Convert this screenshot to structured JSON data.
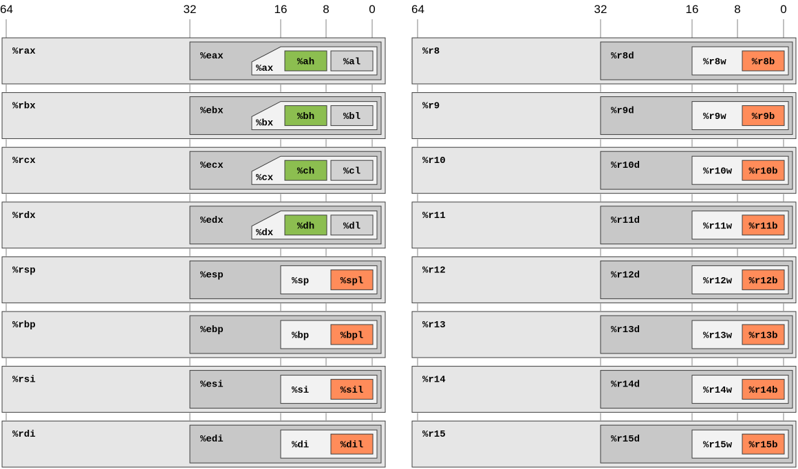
{
  "colors": {
    "quad": "#e6e6e6",
    "dword": "#c8c8c8",
    "word": "#f2f2f2",
    "byte_high": "#8cbe50",
    "byte_low": "#d2d2d2",
    "byte_new": "#ff8c5a",
    "tick_line": "#808080",
    "border": "#3c3c3c"
  },
  "scale_labels": [
    "64",
    "32",
    "16",
    "8",
    "0"
  ],
  "legacy_registers": [
    {
      "q": "%rax",
      "d": "%eax",
      "w": "%ax",
      "h": "%ah",
      "l": "%al"
    },
    {
      "q": "%rbx",
      "d": "%ebx",
      "w": "%bx",
      "h": "%bh",
      "l": "%bl"
    },
    {
      "q": "%rcx",
      "d": "%ecx",
      "w": "%cx",
      "h": "%ch",
      "l": "%cl"
    },
    {
      "q": "%rdx",
      "d": "%edx",
      "w": "%dx",
      "h": "%dh",
      "l": "%dl"
    },
    {
      "q": "%rsp",
      "d": "%esp",
      "w": "%sp",
      "l": "%spl"
    },
    {
      "q": "%rbp",
      "d": "%ebp",
      "w": "%bp",
      "l": "%bpl"
    },
    {
      "q": "%rsi",
      "d": "%esi",
      "w": "%si",
      "l": "%sil"
    },
    {
      "q": "%rdi",
      "d": "%edi",
      "w": "%di",
      "l": "%dil"
    }
  ],
  "extended_registers": [
    {
      "q": "%r8",
      "d": "%r8d",
      "w": "%r8w",
      "l": "%r8b"
    },
    {
      "q": "%r9",
      "d": "%r9d",
      "w": "%r9w",
      "l": "%r9b"
    },
    {
      "q": "%r10",
      "d": "%r10d",
      "w": "%r10w",
      "l": "%r10b"
    },
    {
      "q": "%r11",
      "d": "%r11d",
      "w": "%r11w",
      "l": "%r11b"
    },
    {
      "q": "%r12",
      "d": "%r12d",
      "w": "%r12w",
      "l": "%r12b"
    },
    {
      "q": "%r13",
      "d": "%r13d",
      "w": "%r13w",
      "l": "%r13b"
    },
    {
      "q": "%r14",
      "d": "%r14d",
      "w": "%r14w",
      "l": "%r14b"
    },
    {
      "q": "%r15",
      "d": "%r15d",
      "w": "%r15w",
      "l": "%r15b"
    }
  ]
}
